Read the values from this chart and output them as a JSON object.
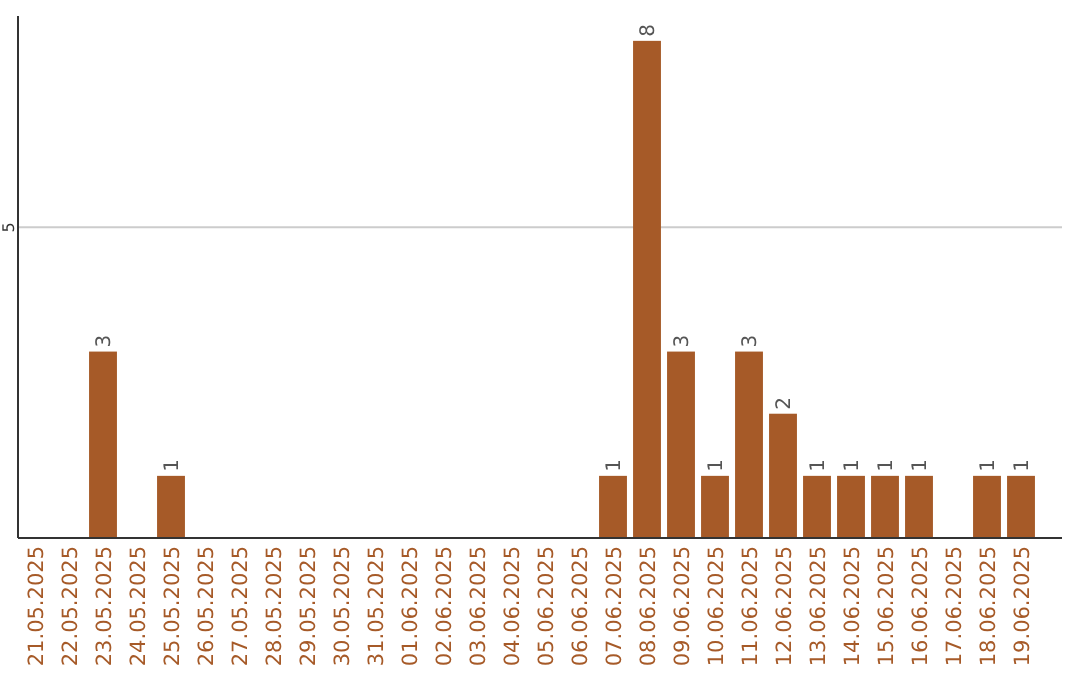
{
  "chart_data": {
    "type": "bar",
    "categories": [
      "21.05.2025",
      "22.05.2025",
      "23.05.2025",
      "24.05.2025",
      "25.05.2025",
      "26.05.2025",
      "27.05.2025",
      "28.05.2025",
      "29.05.2025",
      "30.05.2025",
      "31.05.2025",
      "01.06.2025",
      "02.06.2025",
      "03.06.2025",
      "04.06.2025",
      "05.06.2025",
      "06.06.2025",
      "07.06.2025",
      "08.06.2025",
      "09.06.2025",
      "10.06.2025",
      "11.06.2025",
      "12.06.2025",
      "13.06.2025",
      "14.06.2025",
      "15.06.2025",
      "16.06.2025",
      "17.06.2025",
      "18.06.2025",
      "19.06.2025"
    ],
    "values": [
      0,
      0,
      3,
      0,
      1,
      0,
      0,
      0,
      0,
      0,
      0,
      0,
      0,
      0,
      0,
      0,
      0,
      1,
      8,
      3,
      1,
      3,
      2,
      1,
      1,
      1,
      1,
      0,
      1,
      1
    ],
    "value_labels": [
      null,
      null,
      "3",
      null,
      "1",
      null,
      null,
      null,
      null,
      null,
      null,
      null,
      null,
      null,
      null,
      null,
      null,
      "1",
      "8",
      "3",
      "1",
      "3",
      "2",
      "1",
      "1",
      "1",
      "1",
      null,
      "1",
      "1"
    ],
    "color": "#a65a28",
    "ylim": [
      0,
      8.4
    ],
    "yticks": [
      5
    ],
    "grid": "y"
  }
}
